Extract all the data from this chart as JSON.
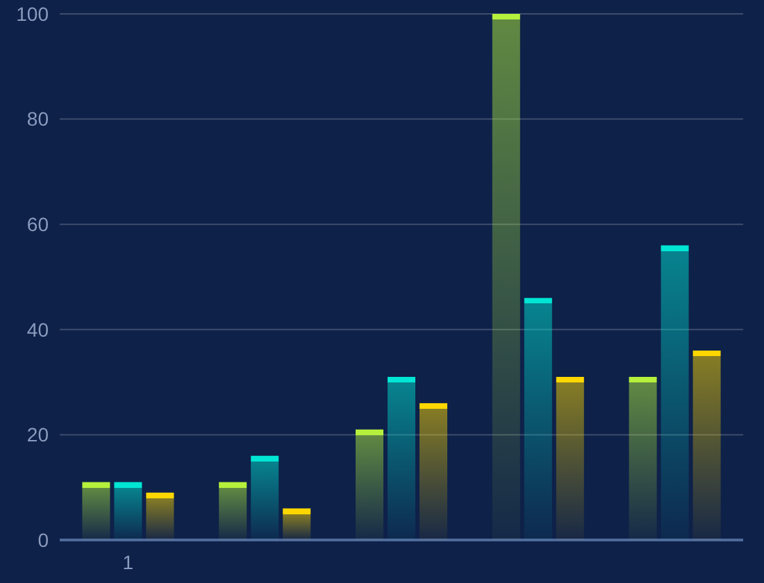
{
  "chart_data": {
    "type": "bar",
    "categories": [
      "1",
      null,
      null,
      null,
      null
    ],
    "series": [
      {
        "color": "#b4f03c",
        "values": [
          11,
          11,
          21,
          100,
          31
        ]
      },
      {
        "color": "#00e5d4",
        "values": [
          11,
          16,
          31,
          46,
          56
        ]
      },
      {
        "color": "#ffd700",
        "values": [
          9,
          6,
          26,
          31,
          36
        ]
      }
    ],
    "ylim": [
      0,
      100
    ],
    "yticks": [
      0,
      20,
      40,
      60,
      80,
      100
    ],
    "grid": "y"
  }
}
